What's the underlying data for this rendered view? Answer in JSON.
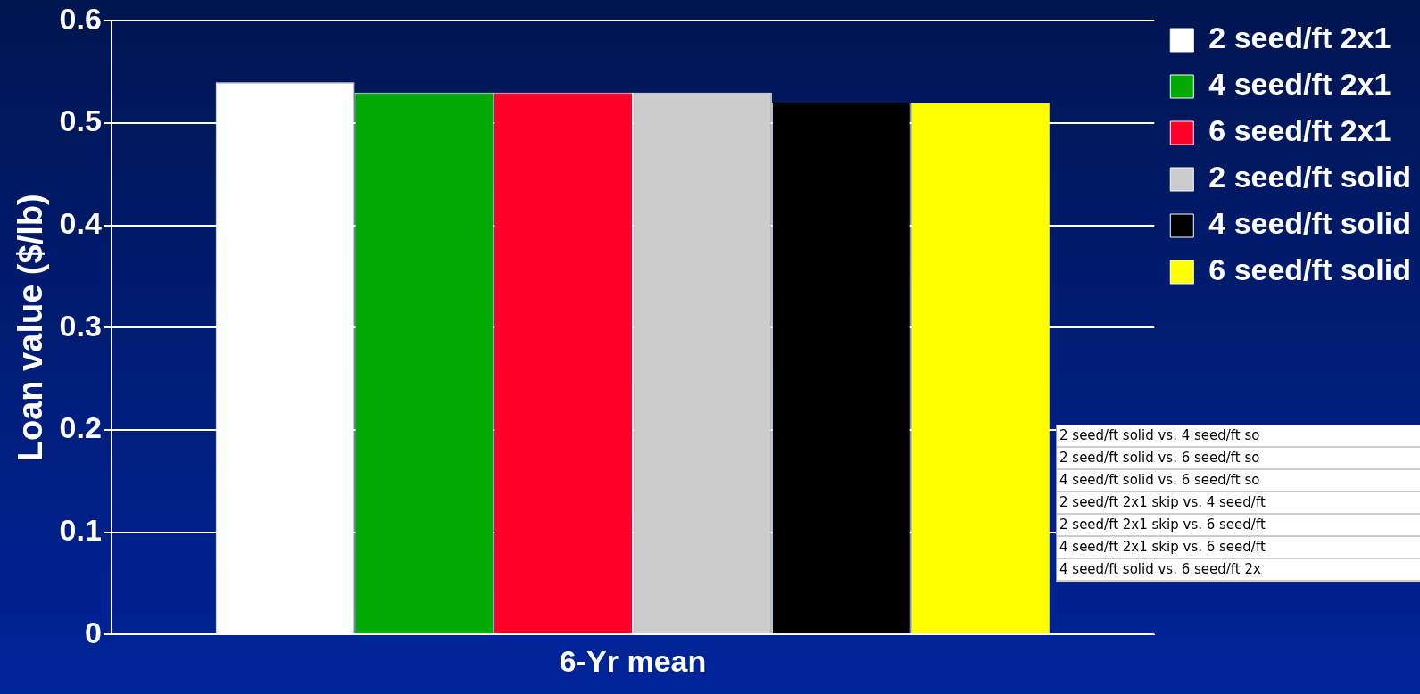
{
  "chart_data": {
    "type": "bar",
    "xlabel": "6-Yr mean",
    "ylabel": "Loan value ($/lb)",
    "categories": [
      null
    ],
    "series": [
      {
        "name": "2 seed/ft 2x1",
        "color": "#ffffff",
        "values": [
          0.54
        ]
      },
      {
        "name": "4 seed/ft 2x1",
        "color": "#00aa00",
        "values": [
          0.53
        ]
      },
      {
        "name": "6 seed/ft 2x1",
        "color": "#ff0029",
        "values": [
          0.53
        ]
      },
      {
        "name": "2 seed/ft solid",
        "color": "#cccccc",
        "values": [
          0.53
        ]
      },
      {
        "name": "4 seed/ft solid",
        "color": "#000000",
        "values": [
          0.52
        ]
      },
      {
        "name": "6 seed/ft solid",
        "color": "#ffff00",
        "values": [
          0.52
        ]
      }
    ],
    "ylim": [
      0,
      0.6
    ],
    "yticks": [
      0,
      0.1,
      0.2,
      0.3,
      0.4,
      0.5,
      0.6
    ],
    "grid": "y",
    "legend": "top right",
    "tick_labels": "y",
    "annotations": [
      "2 seed/ft solid vs. 4 seed/ft so",
      "2 seed/ft solid vs. 6 seed/ft so",
      "4 seed/ft solid vs. 6 seed/ft so",
      "2 seed/ft 2x1 skip vs. 4 seed/ft",
      "2 seed/ft 2x1 skip vs. 6 seed/ft",
      "4 seed/ft 2x1 skip vs. 6 seed/ft",
      "4 seed/ft solid vs. 6 seed/ft 2x"
    ]
  }
}
